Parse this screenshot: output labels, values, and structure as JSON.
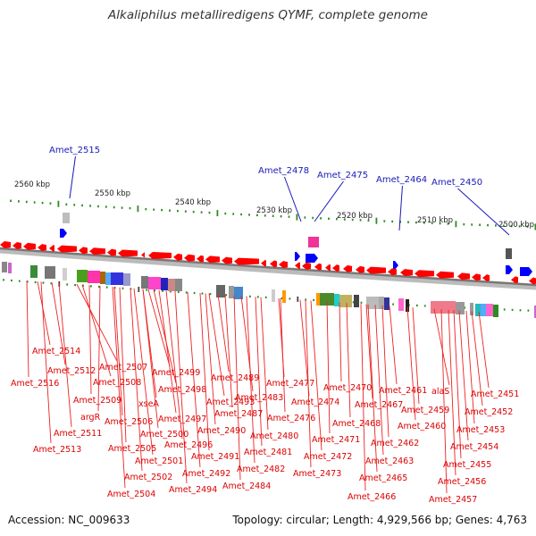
{
  "title": "Alkaliphilus metalliredigens QYMF, complete genome",
  "footer": {
    "accession": "Accession: NC_009633",
    "summary": "Topology: circular; Length: 4,929,566 bp; Genes: 4,763"
  },
  "colors": {
    "forward_gene": "#0000ff",
    "reverse_gene": "#ff0000",
    "gene_label": "#dd0000",
    "highlight_label": "#1a1ab8",
    "backbone": "#888888",
    "tick": "#2e8b22"
  },
  "scale_labels": [
    {
      "text": "2560 kbp",
      "kbp": 2560
    },
    {
      "text": "2550 kbp",
      "kbp": 2550
    },
    {
      "text": "2540 kbp",
      "kbp": 2540
    },
    {
      "text": "2530 kbp",
      "kbp": 2530
    },
    {
      "text": "2520 kbp",
      "kbp": 2520
    },
    {
      "text": "2510 kbp",
      "kbp": 2510
    },
    {
      "text": "2500 kbp",
      "kbp": 2500
    }
  ],
  "highlighted_genes": [
    {
      "text": "Amet_2515"
    },
    {
      "text": "Amet_2478"
    },
    {
      "text": "Amet_2475"
    },
    {
      "text": "Amet_2464"
    },
    {
      "text": "Amet_2450"
    }
  ],
  "gene_labels": [
    "Amet_2514",
    "Amet_2512",
    "Amet_2516",
    "Amet_2507",
    "Amet_2508",
    "Amet_2509",
    "argR",
    "Amet_2511",
    "Amet_2513",
    "Amet_2499",
    "Amet_2498",
    "xseA",
    "Amet_2506",
    "Amet_2497",
    "Amet_2500",
    "Amet_2505",
    "Amet_2496",
    "Amet_2501",
    "Amet_2502",
    "Amet_2504",
    "Amet_2489",
    "Amet_2493",
    "Amet_2487",
    "Amet_2490",
    "Amet_2491",
    "Amet_2492",
    "Amet_2494",
    "Amet_2483",
    "Amet_2480",
    "Amet_2481",
    "Amet_2482",
    "Amet_2484",
    "Amet_2477",
    "Amet_2476",
    "Amet_2474",
    "Amet_2472",
    "Amet_2473",
    "Amet_2470",
    "Amet_2468",
    "Amet_2471",
    "Amet_2467",
    "Amet_2465",
    "Amet_2466",
    "Amet_2461",
    "alaS",
    "Amet_2459",
    "Amet_2460",
    "Amet_2462",
    "Amet_2463",
    "Amet_2451",
    "Amet_2452",
    "Amet_2453",
    "Amet_2454",
    "Amet_2455",
    "Amet_2456",
    "Amet_2457"
  ]
}
